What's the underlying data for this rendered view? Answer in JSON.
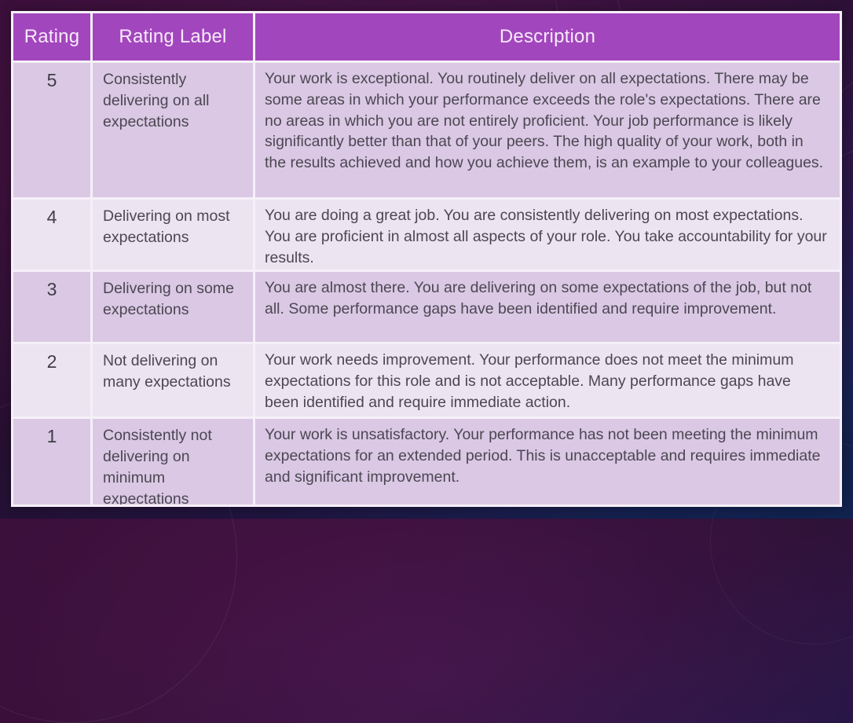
{
  "table": {
    "headers": [
      "Rating",
      "Rating Label",
      "Description"
    ],
    "rows": [
      {
        "rating": "5",
        "label": "Consistently delivering on all expectations",
        "description": "Your work is exceptional. You routinely deliver on all expectations. There may be some areas in which your performance exceeds the role's expectations. There are no areas in which you are not entirely proficient. Your job performance is likely significantly better than that of your peers. The high quality of your work, both in the results achieved and how you achieve them, is an example to your colleagues."
      },
      {
        "rating": "4",
        "label": "Delivering on most expectations",
        "description": "You are doing a great job.  You are consistently delivering on most expectations.  You are proficient in almost all aspects of your role.  You take accountability for your results."
      },
      {
        "rating": "3",
        "label": "Delivering on some expectations",
        "description": "You are almost there. You are delivering on some expectations of the job, but not all. Some performance gaps have been identified and require improvement."
      },
      {
        "rating": "2",
        "label": "Not delivering on many expectations",
        "description": "Your work needs improvement.  Your performance does not meet the minimum expectations for this role and is not acceptable. Many performance gaps have been identified and require immediate action."
      },
      {
        "rating": "1",
        "label": "Consistently not delivering on minimum expectations",
        "description": "Your work is unsatisfactory.  Your performance has not been meeting the minimum expectations for an extended period.  This is unacceptable and requires immediate and significant improvement."
      }
    ]
  },
  "colors": {
    "header_bg": "#a246be",
    "row_dark": "#dac8e4",
    "row_light": "#ede4f2",
    "grid_lines": "#f6f0f8",
    "body_text": "#4c4752",
    "background_top": "#481347",
    "background_bottom": "#16306e"
  }
}
